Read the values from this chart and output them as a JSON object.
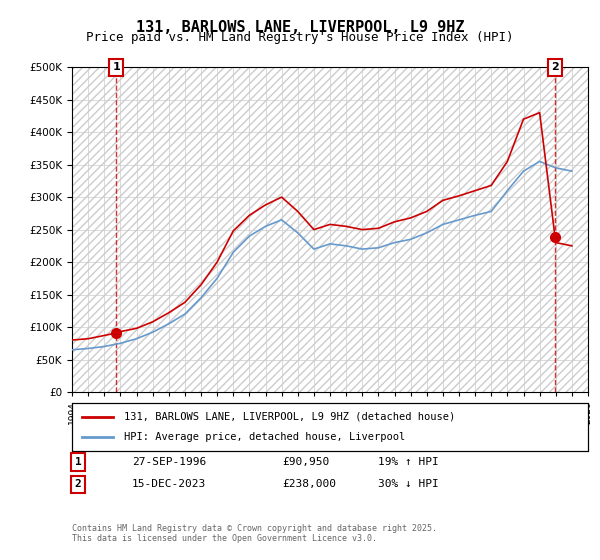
{
  "title": "131, BARLOWS LANE, LIVERPOOL, L9 9HZ",
  "subtitle": "Price paid vs. HM Land Registry's House Price Index (HPI)",
  "ylim": [
    0,
    500000
  ],
  "yticks": [
    0,
    50000,
    100000,
    150000,
    200000,
    250000,
    300000,
    350000,
    400000,
    450000,
    500000
  ],
  "xstart": 1994,
  "xend": 2026,
  "transaction1": {
    "date": 1996.74,
    "price": 90950,
    "label": "1"
  },
  "transaction2": {
    "date": 2023.96,
    "price": 238000,
    "label": "2"
  },
  "legend_line1": "131, BARLOWS LANE, LIVERPOOL, L9 9HZ (detached house)",
  "legend_line2": "HPI: Average price, detached house, Liverpool",
  "table_row1": [
    "1",
    "27-SEP-1996",
    "£90,950",
    "19% ↑ HPI"
  ],
  "table_row2": [
    "2",
    "15-DEC-2023",
    "£238,000",
    "30% ↓ HPI"
  ],
  "footer": "Contains HM Land Registry data © Crown copyright and database right 2025.\nThis data is licensed under the Open Government Licence v3.0.",
  "red_color": "#cc0000",
  "blue_color": "#6699cc",
  "bg_hatch_color": "#e8e8e8",
  "grid_color": "#cccccc",
  "title_fontsize": 11,
  "subtitle_fontsize": 9,
  "axis_fontsize": 8,
  "hpi_base_value_1994": 65000,
  "hpi_peak_2007": 270000,
  "hpi_trough_2009": 220000,
  "hpi_value_2023": 355000
}
